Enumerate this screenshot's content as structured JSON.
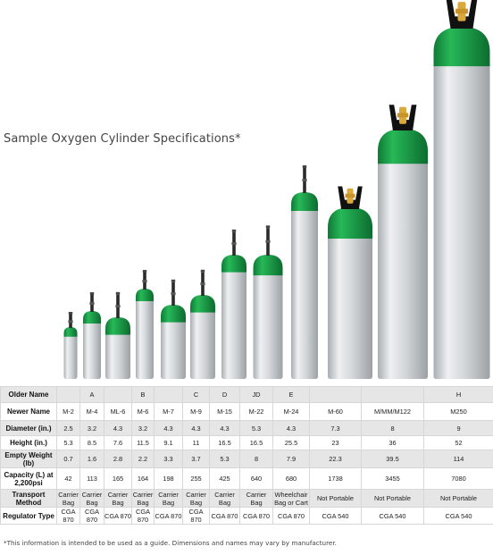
{
  "title": "Sample Oxygen Cylinder Specifications*",
  "footnote": "*This information is intended to be used as a guide. Dimensions and names may vary by manufacturer.",
  "cylinders": [
    {
      "name": "M-2",
      "height_in": 5.3,
      "diameter_in": 2.5,
      "handle": false
    },
    {
      "name": "M-4",
      "height_in": 8.5,
      "diameter_in": 3.2,
      "handle": false
    },
    {
      "name": "ML-6",
      "height_in": 7.6,
      "diameter_in": 4.3,
      "handle": false
    },
    {
      "name": "M-6",
      "height_in": 11.5,
      "diameter_in": 3.2,
      "handle": false
    },
    {
      "name": "M-7",
      "height_in": 9.1,
      "diameter_in": 4.3,
      "handle": false
    },
    {
      "name": "M-9",
      "height_in": 11,
      "diameter_in": 4.3,
      "handle": false
    },
    {
      "name": "M-15",
      "height_in": 16.5,
      "diameter_in": 4.3,
      "handle": false
    },
    {
      "name": "M-22",
      "height_in": 16.5,
      "diameter_in": 5.3,
      "handle": false
    },
    {
      "name": "M-24",
      "height_in": 25.5,
      "diameter_in": 4.3,
      "handle": false
    },
    {
      "name": "M-60",
      "height_in": 23,
      "diameter_in": 7.3,
      "handle": true
    },
    {
      "name": "M/MM/M122",
      "height_in": 36,
      "diameter_in": 8,
      "handle": true
    },
    {
      "name": "M250",
      "height_in": 52,
      "diameter_in": 9,
      "handle": true
    }
  ],
  "colors": {
    "body": "#d4d8db",
    "shoulder": "#1aa04a",
    "valve": "#2a2a2a",
    "handle": "#111111",
    "brass": "#d9a93c"
  },
  "table": {
    "rows": [
      {
        "label": "Older Name",
        "style": "alt",
        "cells": [
          "",
          "A",
          "",
          "B",
          "",
          "C",
          "D",
          "JD",
          "E",
          "",
          "",
          "H"
        ]
      },
      {
        "label": "Newer Name",
        "style": "white",
        "cells": [
          "M-2",
          "M-4",
          "ML-6",
          "M-6",
          "M-7",
          "M-9",
          "M-15",
          "M-22",
          "M-24",
          "M-60",
          "M/MM/M122",
          "M250"
        ]
      },
      {
        "label": "Diameter (in.)",
        "style": "alt",
        "cells": [
          "2.5",
          "3.2",
          "4.3",
          "3.2",
          "4.3",
          "4.3",
          "4.3",
          "5.3",
          "4.3",
          "7.3",
          "8",
          "9"
        ]
      },
      {
        "label": "Height (in.)",
        "style": "white",
        "cells": [
          "5.3",
          "8.5",
          "7.6",
          "11.5",
          "9.1",
          "11",
          "16.5",
          "16.5",
          "25.5",
          "23",
          "36",
          "52"
        ]
      },
      {
        "label": "Empty Weight (lb)",
        "style": "alt",
        "cells": [
          "0.7",
          "1.6",
          "2.8",
          "2.2",
          "3.3",
          "3.7",
          "5.3",
          "8",
          "7.9",
          "22.3",
          "39.5",
          "114"
        ]
      },
      {
        "label": "Capacity (L) at 2,200psi",
        "style": "white",
        "cells": [
          "42",
          "113",
          "165",
          "164",
          "198",
          "255",
          "425",
          "640",
          "680",
          "1738",
          "3455",
          "7080"
        ]
      },
      {
        "label": "Transport Method",
        "style": "alt",
        "cells": [
          "Carrier Bag",
          "Carrier Bag",
          "Carrier Bag",
          "Carrier Bag",
          "Carrier Bag",
          "Carrier Bag",
          "Carrier Bag",
          "Carrier Bag",
          "Wheelchair Bag or Cart",
          "Not Portable",
          "Not Portable",
          "Not Portable"
        ]
      },
      {
        "label": "Regulator Type",
        "style": "white",
        "cells": [
          "CGA 870",
          "CGA 870",
          "CGA 870",
          "CGA 870",
          "CGA 870",
          "CGA 870",
          "CGA 870",
          "CGA 870",
          "CGA 870",
          "CGA 540",
          "CGA 540",
          "CGA 540"
        ]
      }
    ]
  }
}
